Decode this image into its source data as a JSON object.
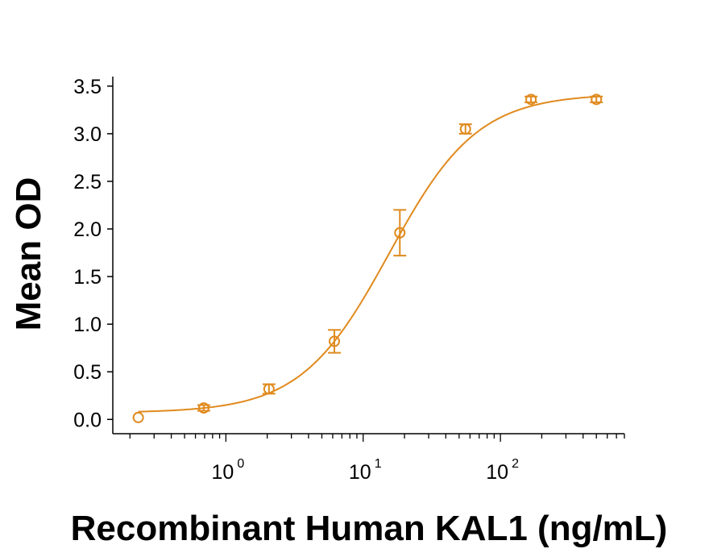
{
  "chart_data": {
    "type": "scatter",
    "xlabel": "Recombinant Human KAL1 (ng/mL)",
    "ylabel": "Mean OD",
    "x_scale": "log",
    "xlim": [
      0.15,
      800
    ],
    "ylim": [
      -0.15,
      3.6
    ],
    "x_ticks": [
      {
        "base": "10",
        "exp": "0",
        "value": 1
      },
      {
        "base": "10",
        "exp": "1",
        "value": 10
      },
      {
        "base": "10",
        "exp": "2",
        "value": 100
      }
    ],
    "y_ticks": [
      "0.0",
      "0.5",
      "1.0",
      "1.5",
      "2.0",
      "2.5",
      "3.0",
      "3.5"
    ],
    "color": "#E08A1E",
    "points": [
      {
        "x": 0.23,
        "y": 0.02,
        "err": 0.0
      },
      {
        "x": 0.69,
        "y": 0.12,
        "err": 0.03
      },
      {
        "x": 2.06,
        "y": 0.32,
        "err": 0.05
      },
      {
        "x": 6.17,
        "y": 0.82,
        "err": 0.12
      },
      {
        "x": 18.5,
        "y": 1.96,
        "err": 0.24
      },
      {
        "x": 55.6,
        "y": 3.05,
        "err": 0.05
      },
      {
        "x": 167,
        "y": 3.36,
        "err": 0.03
      },
      {
        "x": 500,
        "y": 3.36,
        "err": 0.03
      }
    ],
    "fit": {
      "bottom": 0.07,
      "top": 3.42,
      "ec50": 15.5,
      "hill": 1.35
    }
  }
}
